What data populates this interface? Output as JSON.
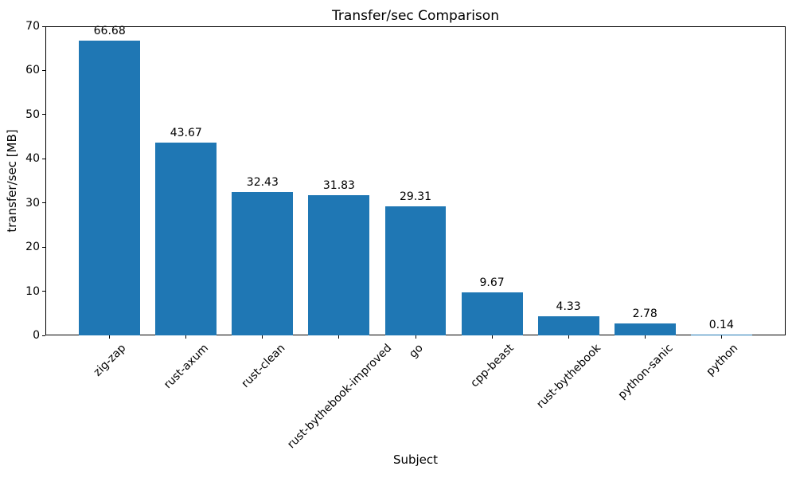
{
  "chart_data": {
    "type": "bar",
    "title": "Transfer/sec Comparison",
    "xlabel": "Subject",
    "ylabel": "transfer/sec [MB]",
    "categories": [
      "zig-zap",
      "rust-axum",
      "rust-clean",
      "rust-bythebook-improved",
      "go",
      "cpp-beast",
      "rust-bythebook",
      "python-sanic",
      "python"
    ],
    "values": [
      66.68,
      43.67,
      32.43,
      31.83,
      29.31,
      9.67,
      4.33,
      2.78,
      0.14
    ],
    "value_labels": [
      "66.68",
      "43.67",
      "32.43",
      "31.83",
      "29.31",
      "9.67",
      "4.33",
      "2.78",
      "0.14"
    ],
    "yticks": [
      0,
      10,
      20,
      30,
      40,
      50,
      60,
      70
    ],
    "ylim": [
      0,
      70
    ],
    "bar_color": "#1f77b4",
    "spine_color": "#000000",
    "text_color": "#000000",
    "grid": false,
    "legend": null,
    "x_tick_rotation": 45,
    "bar_relative_width": 0.8
  }
}
